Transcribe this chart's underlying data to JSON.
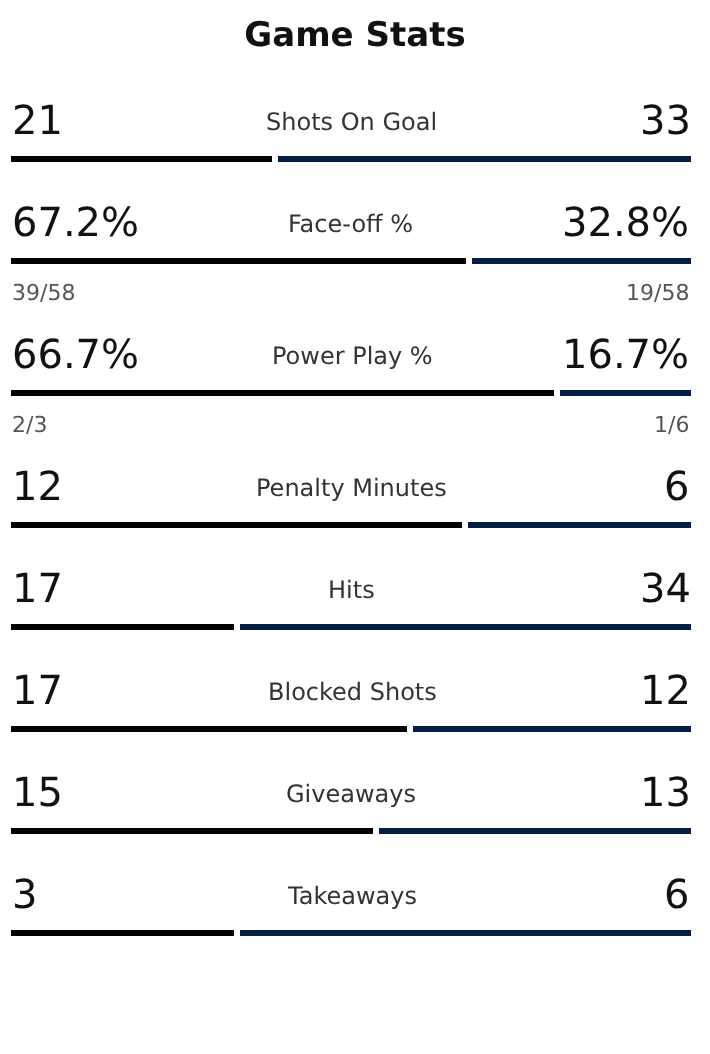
{
  "chart_data": [
    {
      "type": "bar",
      "title": "Game Stats",
      "orientation": "horizontal",
      "stacked": true,
      "categories": [
        "Shots On Goal"
      ],
      "series": [
        {
          "color": "#000000",
          "values": [
            21
          ],
          "value_labels": [
            "21"
          ]
        },
        {
          "color": "#041e42",
          "values": [
            33
          ],
          "value_labels": [
            "33"
          ]
        }
      ]
    },
    {
      "type": "bar",
      "orientation": "horizontal",
      "stacked": true,
      "categories": [
        "Face-off %"
      ],
      "series": [
        {
          "color": "#000000",
          "values": [
            67.2
          ],
          "value_labels": [
            "67.2%"
          ]
        },
        {
          "color": "#041e42",
          "values": [
            32.8
          ],
          "value_labels": [
            "32.8%"
          ]
        }
      ],
      "annotations": [
        "39/58",
        "19/58"
      ]
    },
    {
      "type": "bar",
      "orientation": "horizontal",
      "stacked": true,
      "categories": [
        "Power Play %"
      ],
      "series": [
        {
          "color": "#000000",
          "values": [
            66.7
          ],
          "value_labels": [
            "66.7%"
          ]
        },
        {
          "color": "#041e42",
          "values": [
            16.7
          ],
          "value_labels": [
            "16.7%"
          ]
        }
      ],
      "annotations": [
        "2/3",
        "1/6"
      ]
    },
    {
      "type": "bar",
      "orientation": "horizontal",
      "stacked": true,
      "categories": [
        "Penalty Minutes"
      ],
      "series": [
        {
          "color": "#000000",
          "values": [
            12
          ],
          "value_labels": [
            "12"
          ]
        },
        {
          "color": "#041e42",
          "values": [
            6
          ],
          "value_labels": [
            "6"
          ]
        }
      ]
    },
    {
      "type": "bar",
      "orientation": "horizontal",
      "stacked": true,
      "categories": [
        "Hits"
      ],
      "series": [
        {
          "color": "#000000",
          "values": [
            17
          ],
          "value_labels": [
            "17"
          ]
        },
        {
          "color": "#041e42",
          "values": [
            34
          ],
          "value_labels": [
            "34"
          ]
        }
      ]
    },
    {
      "type": "bar",
      "orientation": "horizontal",
      "stacked": true,
      "categories": [
        "Blocked Shots"
      ],
      "series": [
        {
          "color": "#000000",
          "values": [
            17
          ],
          "value_labels": [
            "17"
          ]
        },
        {
          "color": "#041e42",
          "values": [
            12
          ],
          "value_labels": [
            "12"
          ]
        }
      ]
    },
    {
      "type": "bar",
      "orientation": "horizontal",
      "stacked": true,
      "categories": [
        "Giveaways"
      ],
      "series": [
        {
          "color": "#000000",
          "values": [
            15
          ],
          "value_labels": [
            "15"
          ]
        },
        {
          "color": "#041e42",
          "values": [
            13
          ],
          "value_labels": [
            "13"
          ]
        }
      ]
    },
    {
      "type": "bar",
      "orientation": "horizontal",
      "stacked": true,
      "categories": [
        "Takeaways"
      ],
      "series": [
        {
          "color": "#000000",
          "values": [
            3
          ],
          "value_labels": [
            "3"
          ]
        },
        {
          "color": "#041e42",
          "values": [
            6
          ],
          "value_labels": [
            "6"
          ]
        }
      ]
    }
  ]
}
